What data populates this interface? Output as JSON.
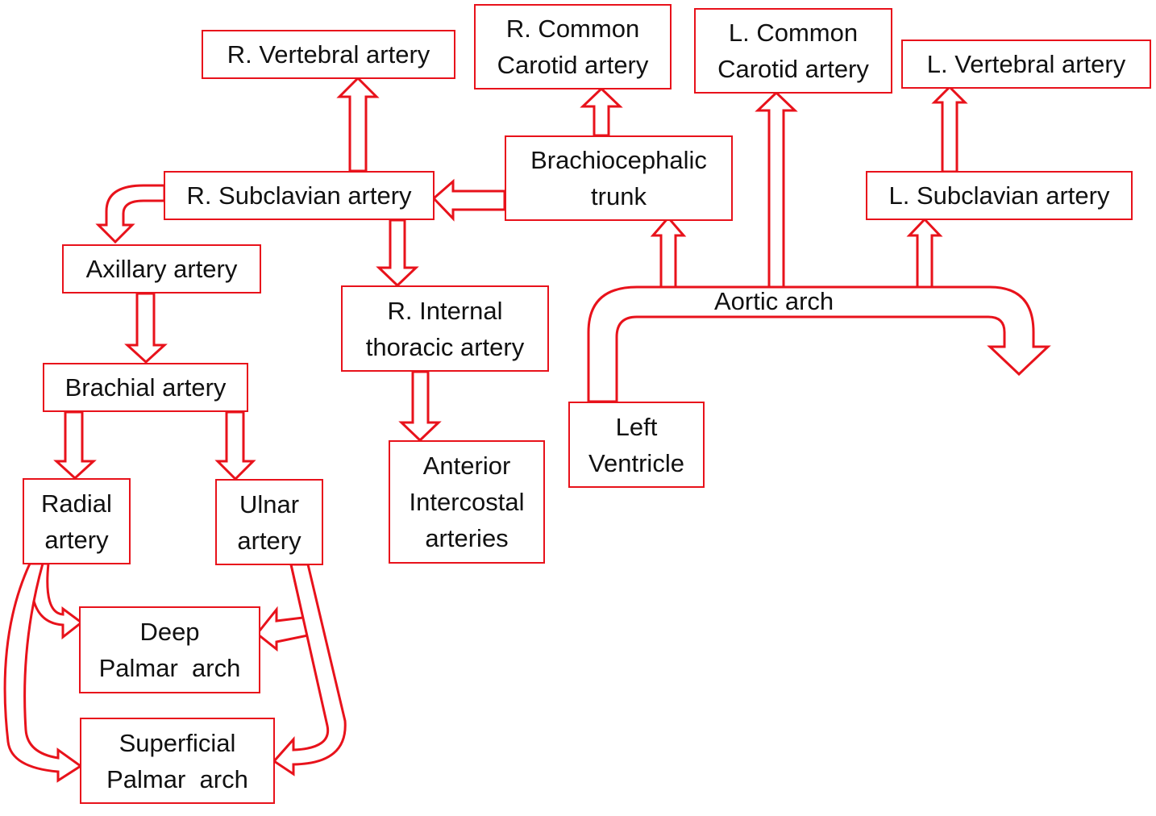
{
  "accent_color": "#e8121b",
  "nodes": {
    "r_vertebral": [
      "R. Vertebral artery"
    ],
    "r_common_carotid": [
      "R. Common",
      "Carotid artery"
    ],
    "l_common_carotid": [
      "L. Common",
      "Carotid artery"
    ],
    "l_vertebral": [
      "L. Vertebral artery"
    ],
    "r_subclavian": [
      "R. Subclavian artery"
    ],
    "brachiocephalic": [
      "Brachiocephalic",
      "trunk"
    ],
    "l_subclavian": [
      "L. Subclavian artery"
    ],
    "axillary": [
      "Axillary artery"
    ],
    "r_internal_thoracic": [
      "R. Internal",
      "thoracic artery"
    ],
    "brachial": [
      "Brachial artery"
    ],
    "left_ventricle": [
      "Left",
      "Ventricle"
    ],
    "radial": [
      "Radial",
      "artery"
    ],
    "ulnar": [
      "Ulnar",
      "artery"
    ],
    "anterior_intercostal": [
      "Anterior",
      "Intercostal",
      "arteries"
    ],
    "deep_palmar": [
      "Deep",
      "Palmar  arch"
    ],
    "superficial_palmar": [
      "Superficial",
      "Palmar  arch"
    ],
    "aortic_arch_label": "Aortic arch"
  }
}
